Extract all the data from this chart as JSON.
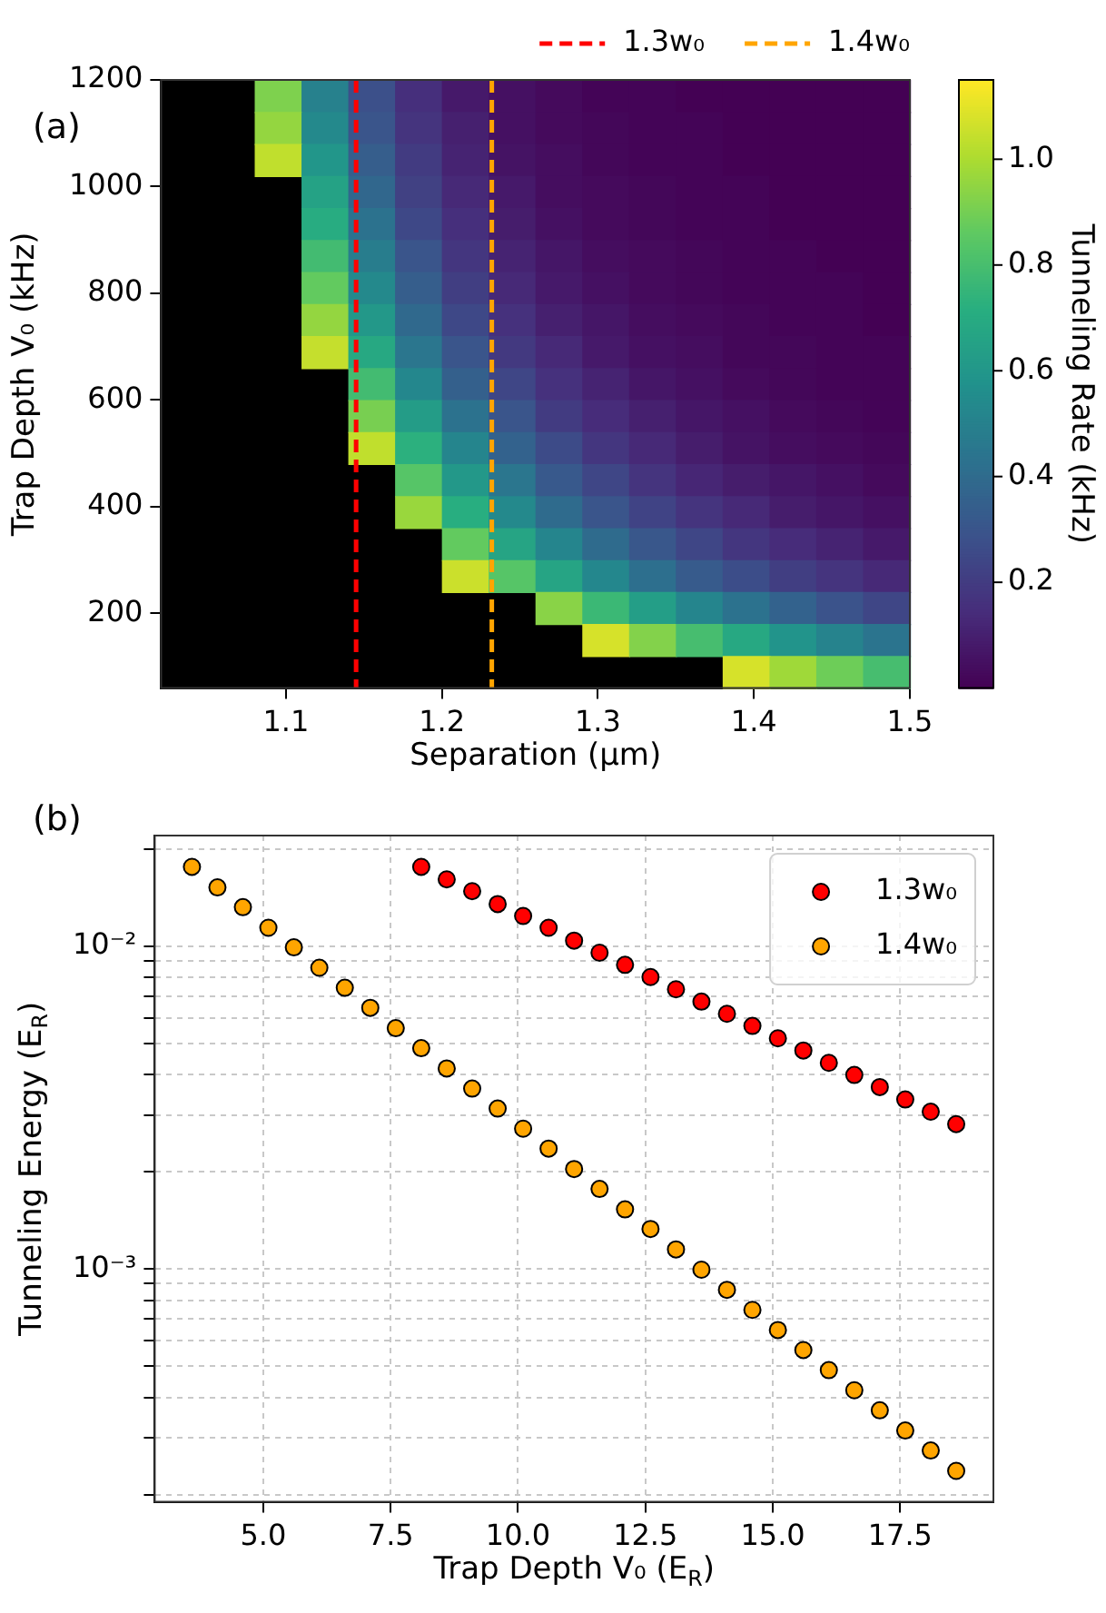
{
  "chart_data": [
    {
      "type": "heatmap",
      "xlabel": "Separation (μm)",
      "ylabel": "Trap Depth V₀ (kHz)",
      "clabel": "Tunneling Rate (kHz)",
      "x": [
        1.035,
        1.065,
        1.095,
        1.125,
        1.155,
        1.185,
        1.215,
        1.245,
        1.275,
        1.305,
        1.335,
        1.365,
        1.395,
        1.425,
        1.455,
        1.485
      ],
      "y": [
        1170,
        1110,
        1050,
        990,
        930,
        870,
        810,
        750,
        690,
        630,
        570,
        510,
        450,
        390,
        330,
        270,
        210,
        150,
        90
      ],
      "cells": [
        [
          null,
          null,
          0.92,
          0.5,
          0.28,
          0.15,
          0.08,
          0.05,
          0.03,
          0.01,
          0.01,
          0,
          0,
          0,
          0,
          0
        ],
        [
          null,
          null,
          0.96,
          0.54,
          0.3,
          0.17,
          0.1,
          0.05,
          0.03,
          0.02,
          0.01,
          0.01,
          0,
          0,
          0,
          0
        ],
        [
          null,
          null,
          1.04,
          0.6,
          0.34,
          0.2,
          0.11,
          0.06,
          0.04,
          0.02,
          0.01,
          0.01,
          0,
          0,
          0,
          0
        ],
        [
          null,
          null,
          null,
          0.66,
          0.38,
          0.22,
          0.13,
          0.08,
          0.04,
          0.03,
          0.02,
          0.01,
          0.01,
          0,
          0,
          0
        ],
        [
          null,
          null,
          null,
          0.71,
          0.43,
          0.25,
          0.15,
          0.09,
          0.05,
          0.03,
          0.02,
          0.01,
          0.01,
          0,
          0,
          0
        ],
        [
          null,
          null,
          null,
          0.79,
          0.48,
          0.3,
          0.18,
          0.11,
          0.07,
          0.04,
          0.03,
          0.02,
          0.01,
          0.01,
          0,
          0
        ],
        [
          null,
          null,
          null,
          0.87,
          0.54,
          0.34,
          0.21,
          0.13,
          0.08,
          0.05,
          0.03,
          0.02,
          0.01,
          0.01,
          0.01,
          0
        ],
        [
          null,
          null,
          null,
          0.96,
          0.61,
          0.39,
          0.25,
          0.16,
          0.1,
          0.07,
          0.04,
          0.03,
          0.02,
          0.01,
          0.01,
          0
        ],
        [
          null,
          null,
          null,
          1.05,
          0.69,
          0.45,
          0.3,
          0.19,
          0.13,
          0.08,
          0.05,
          0.04,
          0.02,
          0.02,
          0.01,
          0.01
        ],
        [
          null,
          null,
          null,
          null,
          0.79,
          0.53,
          0.35,
          0.24,
          0.16,
          0.11,
          0.07,
          0.05,
          0.03,
          0.02,
          0.01,
          0.01
        ],
        [
          null,
          null,
          null,
          null,
          0.91,
          0.63,
          0.43,
          0.3,
          0.2,
          0.14,
          0.1,
          0.07,
          0.05,
          0.03,
          0.02,
          0.01
        ],
        [
          null,
          null,
          null,
          null,
          1.04,
          0.73,
          0.52,
          0.36,
          0.26,
          0.18,
          0.13,
          0.09,
          0.06,
          0.04,
          0.03,
          0.02
        ],
        [
          null,
          null,
          null,
          null,
          null,
          0.84,
          0.61,
          0.45,
          0.32,
          0.24,
          0.17,
          0.12,
          0.09,
          0.07,
          0.05,
          0.03
        ],
        [
          null,
          null,
          null,
          null,
          null,
          0.97,
          0.72,
          0.54,
          0.4,
          0.3,
          0.23,
          0.17,
          0.13,
          0.09,
          0.07,
          0.05
        ],
        [
          null,
          null,
          null,
          null,
          null,
          null,
          0.87,
          0.67,
          0.52,
          0.4,
          0.31,
          0.24,
          0.18,
          0.14,
          0.11,
          0.08
        ],
        [
          null,
          null,
          null,
          null,
          null,
          null,
          1.06,
          0.84,
          0.67,
          0.53,
          0.42,
          0.33,
          0.27,
          0.21,
          0.17,
          0.13
        ],
        [
          null,
          null,
          null,
          null,
          null,
          null,
          null,
          null,
          0.94,
          0.77,
          0.64,
          0.52,
          0.43,
          0.36,
          0.29,
          0.24
        ],
        [
          null,
          null,
          null,
          null,
          null,
          null,
          null,
          null,
          null,
          1.08,
          0.93,
          0.8,
          0.69,
          0.59,
          0.51,
          0.44
        ],
        [
          null,
          null,
          null,
          null,
          null,
          null,
          null,
          null,
          null,
          null,
          null,
          null,
          1.08,
          0.98,
          0.89,
          0.8
        ]
      ],
      "xlim": [
        1.02,
        1.5
      ],
      "ylim": [
        60,
        1200
      ],
      "xticks": [
        1.1,
        1.2,
        1.3,
        1.4,
        1.5
      ],
      "yticks": [
        200,
        400,
        600,
        800,
        1000,
        1200
      ],
      "clim": [
        0.0,
        1.15
      ],
      "cticks": [
        0.2,
        0.4,
        0.6,
        0.8,
        {
          "value": 1,
          "label": "1.0"
        }
      ],
      "ref_lines": [
        {
          "axis": "x",
          "value": 1.145,
          "label": "1.3w₀",
          "color": "#ff0000",
          "line_style": "dashed"
        },
        {
          "axis": "x",
          "value": 1.232,
          "label": "1.4w₀",
          "color": "#ffa500",
          "line_style": "dashed"
        }
      ],
      "legend": "top right",
      "annotations": [
        "(a)"
      ]
    },
    {
      "type": "scatter",
      "xlabel": "Trap Depth V₀ (E$_{R}$)",
      "ylabel": "Tunneling Energy (E$_{R}$)",
      "series": [
        {
          "name": "1.3w₀",
          "color": "#ff0000",
          "x": [
            8.1,
            8.6,
            9.1,
            9.6,
            10.1,
            10.6,
            11.1,
            11.6,
            12.1,
            12.6,
            13.1,
            13.6,
            14.1,
            14.6,
            15.1,
            15.6,
            16.1,
            16.6,
            17.1,
            17.6,
            18.1,
            18.6
          ],
          "values": [
            0.0176,
            0.0161,
            0.0148,
            0.0135,
            0.0124,
            0.0114,
            0.0104,
            0.00954,
            0.00875,
            0.00802,
            0.00735,
            0.00673,
            0.00617,
            0.00566,
            0.00518,
            0.00475,
            0.00435,
            0.00399,
            0.00366,
            0.00335,
            0.00307,
            0.00281
          ]
        },
        {
          "name": "1.4w₀",
          "color": "#ffa500",
          "x": [
            3.6,
            4.1,
            4.6,
            5.1,
            5.6,
            6.1,
            6.6,
            7.1,
            7.6,
            8.1,
            8.6,
            9.1,
            9.6,
            10.1,
            10.6,
            11.1,
            11.6,
            12.1,
            12.6,
            13.1,
            13.6,
            14.1,
            14.6,
            15.1,
            15.6,
            16.1,
            16.6,
            17.1,
            17.6,
            18.1,
            18.6
          ],
          "values": [
            0.0176,
            0.0152,
            0.0132,
            0.0114,
            0.00991,
            0.00857,
            0.00743,
            0.00644,
            0.00557,
            0.00483,
            0.00418,
            0.00362,
            0.00314,
            0.00272,
            0.00236,
            0.00204,
            0.00177,
            0.00153,
            0.00133,
            0.00115,
            0.000995,
            0.000862,
            0.000747,
            0.000647,
            0.000561,
            0.000486,
            0.000421,
            0.000365,
            0.000316,
            0.000274,
            0.000237
          ]
        }
      ],
      "xlim": [
        2.87,
        19.33
      ],
      "ylim": [
        0.00019,
        0.022
      ],
      "xticks": [
        {
          "value": 5,
          "label": "5.0"
        },
        7.5,
        {
          "value": 10,
          "label": "10.0"
        },
        12.5,
        {
          "value": 15,
          "label": "15.0"
        },
        17.5
      ],
      "yticks": [
        {
          "value": 0.0002,
          "label": null
        },
        {
          "value": 0.0003,
          "label": null
        },
        {
          "value": 0.0004,
          "label": null
        },
        {
          "value": 0.0005,
          "label": null
        },
        {
          "value": 0.0006,
          "label": null
        },
        {
          "value": 0.0007,
          "label": null
        },
        {
          "value": 0.0008,
          "label": null
        },
        {
          "value": 0.0009,
          "label": null
        },
        {
          "value": 0.001,
          "label": "10⁻³"
        },
        {
          "value": 0.002,
          "label": null
        },
        {
          "value": 0.003,
          "label": null
        },
        {
          "value": 0.004,
          "label": null
        },
        {
          "value": 0.005,
          "label": null
        },
        {
          "value": 0.006,
          "label": null
        },
        {
          "value": 0.007,
          "label": null
        },
        {
          "value": 0.008,
          "label": null
        },
        {
          "value": 0.009,
          "label": null
        },
        {
          "value": 0.01,
          "label": "10⁻²"
        },
        {
          "value": 0.02,
          "label": null
        }
      ],
      "log": "y",
      "grid": true,
      "legend": "top right",
      "marker": "circle",
      "annotations": [
        "(b)"
      ]
    }
  ]
}
